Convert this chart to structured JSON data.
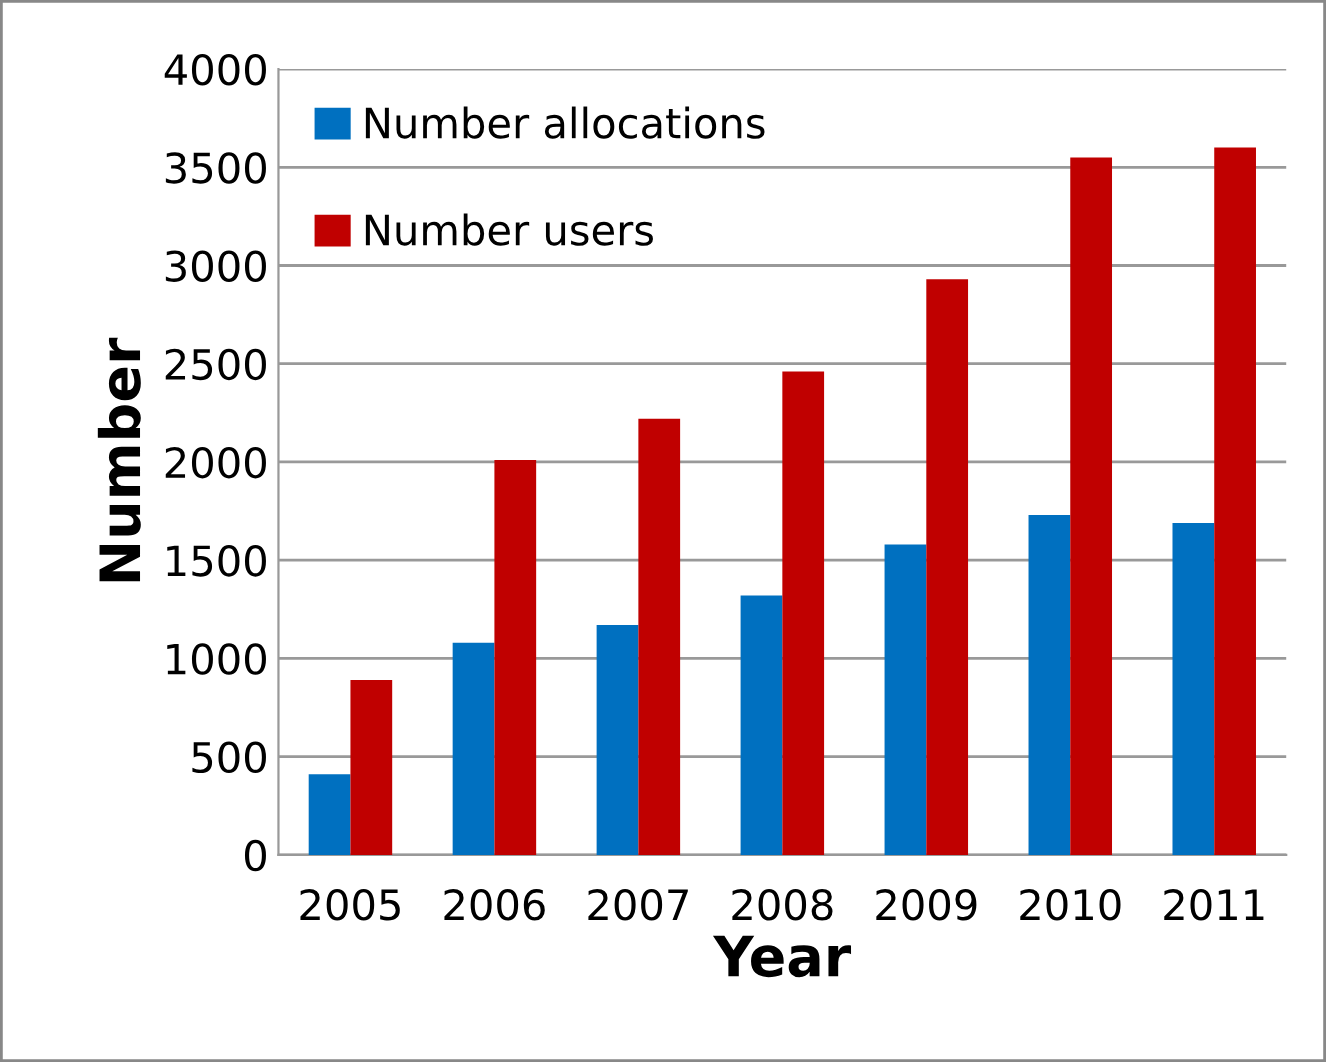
{
  "chart_data": {
    "type": "bar",
    "xlabel": "Year",
    "ylabel": "Number",
    "categories": [
      "2005",
      "2006",
      "2007",
      "2008",
      "2009",
      "2010",
      "2011"
    ],
    "series": [
      {
        "name": "Number allocations",
        "color": "#0070c0",
        "values": [
          410,
          1080,
          1170,
          1320,
          1580,
          1730,
          1690
        ]
      },
      {
        "name": "Number users",
        "color": "#c00000",
        "values": [
          890,
          2010,
          2220,
          2460,
          2930,
          3550,
          3600
        ]
      }
    ],
    "ylim": [
      0,
      4000
    ],
    "yticks": [
      0,
      500,
      1000,
      1500,
      2000,
      2500,
      3000,
      3500,
      4000
    ],
    "grid": "y",
    "legend": "top left"
  }
}
